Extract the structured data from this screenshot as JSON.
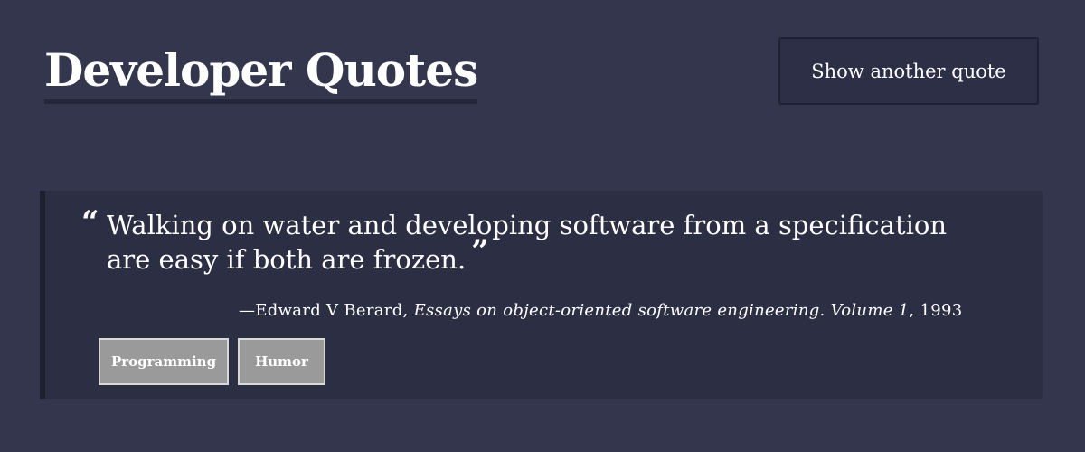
{
  "header": {
    "title": "Developer Quotes",
    "another_button_label": "Show another quote"
  },
  "quote": {
    "open_mark": "“",
    "text": "Walking on water and developing software from a specification are easy if both are frozen.",
    "close_mark": "”",
    "dash": "—",
    "author": "Edward V Berard",
    "separator": ", ",
    "source": "Essays on object-oriented software engineering. Volume 1",
    "year_prefix": ", ",
    "year": "1993"
  },
  "tags": [
    {
      "label": "Programming"
    },
    {
      "label": "Humor"
    }
  ],
  "colors": {
    "background": "#33364d",
    "card": "#2c2e44",
    "tag_bg": "#9a9a9a"
  }
}
